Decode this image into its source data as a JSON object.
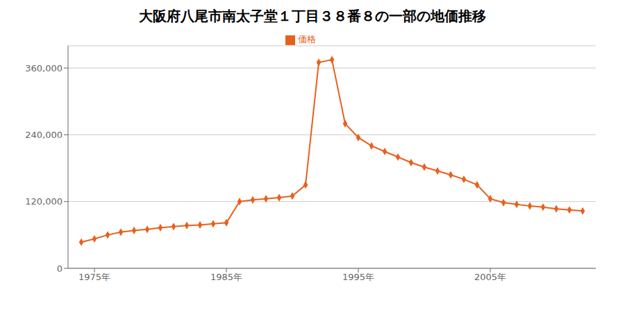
{
  "chart_data": {
    "type": "line",
    "title": "大阪府八尾市南太子堂１丁目３８番８の一部の地価推移",
    "x": [
      1974,
      1975,
      1976,
      1977,
      1978,
      1979,
      1980,
      1981,
      1982,
      1983,
      1984,
      1985,
      1986,
      1987,
      1988,
      1989,
      1990,
      1991,
      1992,
      1993,
      1994,
      1995,
      1996,
      1997,
      1998,
      1999,
      2000,
      2001,
      2002,
      2003,
      2004,
      2005,
      2006,
      2007,
      2008,
      2009,
      2010,
      2011,
      2012
    ],
    "series": [
      {
        "name": "価格",
        "color": "#e8601c",
        "marker": "diamond",
        "values": [
          47000,
          53000,
          60000,
          65000,
          68000,
          70000,
          73000,
          75000,
          77000,
          78000,
          80000,
          82000,
          120000,
          123000,
          125000,
          127000,
          130000,
          150000,
          370000,
          375000,
          260000,
          235000,
          220000,
          210000,
          200000,
          190000,
          182000,
          175000,
          168000,
          160000,
          150000,
          125000,
          118000,
          115000,
          112000,
          110000,
          107000,
          105000,
          103000
        ]
      }
    ],
    "xlim": [
      1973,
      2013
    ],
    "xticks": [
      {
        "value": 1975,
        "label": "1975年"
      },
      {
        "value": 1985,
        "label": "1985年"
      },
      {
        "value": 1995,
        "label": "1995年"
      },
      {
        "value": 2005,
        "label": "2005年"
      }
    ],
    "ylim": [
      0,
      400000
    ],
    "yticks": [
      0,
      {
        "value": 120000,
        "label": "120,000"
      },
      {
        "value": 240000,
        "label": "240,000"
      },
      {
        "value": 360000,
        "label": "360,000"
      }
    ],
    "grid": "y",
    "legend": "top"
  }
}
